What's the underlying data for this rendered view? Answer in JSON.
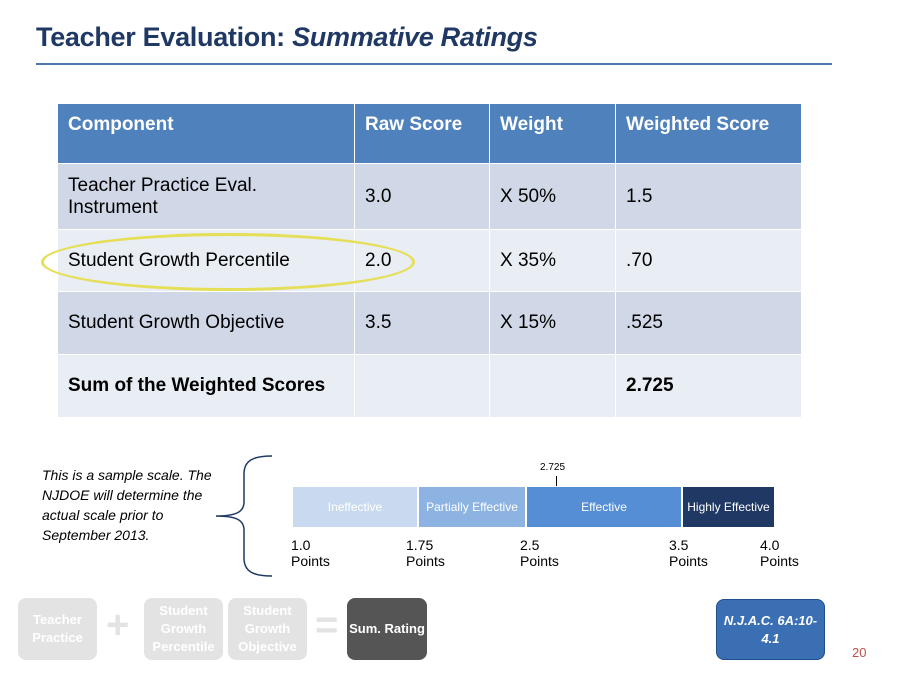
{
  "title": {
    "main": "Teacher Evaluation:",
    "italic": "Summative Ratings"
  },
  "table": {
    "headers": [
      "Component",
      "Raw Score",
      "Weight",
      "Weighted Score"
    ],
    "rows": [
      {
        "component": "Teacher Practice Eval. Instrument",
        "raw": "3.0",
        "weight": "X 50%",
        "weighted": "1.5"
      },
      {
        "component": "Student Growth Percentile",
        "raw": "2.0",
        "weight": "X 35%",
        "weighted": ".70"
      },
      {
        "component": "Student Growth Objective",
        "raw": "3.5",
        "weight": "X 15%",
        "weighted": ".525"
      },
      {
        "component": "Sum of the Weighted Scores",
        "raw": "",
        "weight": "",
        "weighted": "2.725"
      }
    ]
  },
  "note": "This is a sample scale.  The NJDOE will determine the actual scale prior to September 2013.",
  "scale": {
    "marker_value": "2.725",
    "segments": [
      "Ineffective",
      "Partially Effective",
      "Effective",
      "Highly Effective"
    ],
    "points": [
      {
        "value": "1.0",
        "unit": "Points"
      },
      {
        "value": "1.75",
        "unit": "Points"
      },
      {
        "value": "2.5",
        "unit": "Points"
      },
      {
        "value": "3.5",
        "unit": "Points"
      },
      {
        "value": "4.0",
        "unit": "Points"
      }
    ]
  },
  "formula": {
    "boxes": [
      "Teacher Practice",
      "Student Growth Percentile",
      "Student Growth Objective",
      "Sum. Rating"
    ],
    "plus": "+",
    "equals": "="
  },
  "citation": "N.J.A.C. 6A:10-4.1",
  "page_number": "20",
  "colors": {
    "title": "#1f3864",
    "header": "#4f81bd",
    "highlight": "#e5df58",
    "effective": "#558ed5",
    "highly_effective": "#1f3864"
  }
}
